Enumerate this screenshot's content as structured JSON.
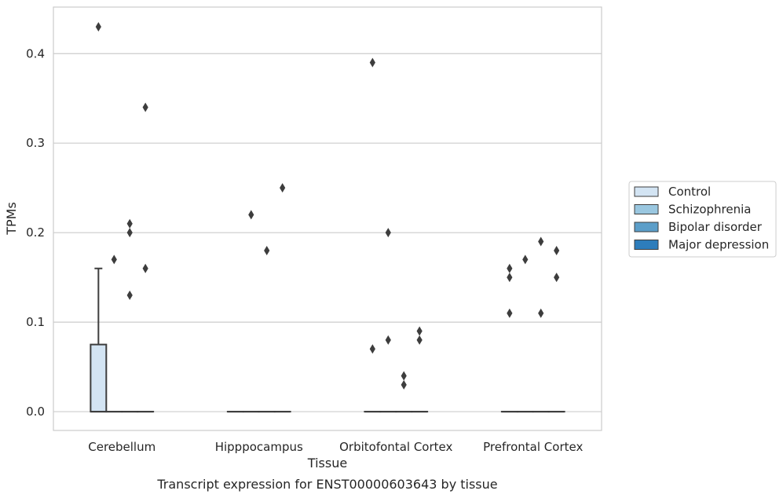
{
  "chart_data": {
    "type": "box",
    "xlabel": "Tissue",
    "ylabel": "TPMs",
    "caption": "Transcript expression for ENST00000603643 by tissue",
    "categories": [
      "Cerebellum",
      "Hipppocampus",
      "Orbitofontal Cortex",
      "Prefrontal Cortex"
    ],
    "ylim": [
      -0.021,
      0.452
    ],
    "yticks": [
      0.0,
      0.1,
      0.2,
      0.3,
      0.4
    ],
    "ytick_labels": [
      "0.0",
      "0.1",
      "0.2",
      "0.3",
      "0.4"
    ],
    "grid": "horizontal",
    "legend_position": "right",
    "series": [
      {
        "name": "Control",
        "color": "#d3e4f3",
        "boxes": [
          {
            "q1": 0.0,
            "median": 0.0,
            "q3": 0.075,
            "whisker_low": 0.0,
            "whisker_high": 0.16,
            "outliers": [
              0.43
            ]
          },
          {
            "q1": 0.0,
            "median": 0.0,
            "q3": 0.0,
            "whisker_low": 0.0,
            "whisker_high": 0.0,
            "outliers": []
          },
          {
            "q1": 0.0,
            "median": 0.0,
            "q3": 0.0,
            "whisker_low": 0.0,
            "whisker_high": 0.0,
            "outliers": [
              0.39,
              0.07
            ]
          },
          {
            "q1": 0.0,
            "median": 0.0,
            "q3": 0.0,
            "whisker_low": 0.0,
            "whisker_high": 0.0,
            "outliers": [
              0.16,
              0.15,
              0.11
            ]
          }
        ]
      },
      {
        "name": "Schizophrenia",
        "color": "#9ac7e0",
        "boxes": [
          {
            "q1": 0.0,
            "median": 0.0,
            "q3": 0.0,
            "whisker_low": 0.0,
            "whisker_high": 0.0,
            "outliers": [
              0.17
            ]
          },
          {
            "q1": 0.0,
            "median": 0.0,
            "q3": 0.0,
            "whisker_low": 0.0,
            "whisker_high": 0.0,
            "outliers": [
              0.22
            ]
          },
          {
            "q1": 0.0,
            "median": 0.0,
            "q3": 0.0,
            "whisker_low": 0.0,
            "whisker_high": 0.0,
            "outliers": [
              0.2,
              0.08
            ]
          },
          {
            "q1": 0.0,
            "median": 0.0,
            "q3": 0.0,
            "whisker_low": 0.0,
            "whisker_high": 0.0,
            "outliers": [
              0.17
            ]
          }
        ]
      },
      {
        "name": "Bipolar disorder",
        "color": "#5b9ec9",
        "boxes": [
          {
            "q1": 0.0,
            "median": 0.0,
            "q3": 0.0,
            "whisker_low": 0.0,
            "whisker_high": 0.0,
            "outliers": [
              0.21,
              0.2,
              0.13
            ]
          },
          {
            "q1": 0.0,
            "median": 0.0,
            "q3": 0.0,
            "whisker_low": 0.0,
            "whisker_high": 0.0,
            "outliers": [
              0.18
            ]
          },
          {
            "q1": 0.0,
            "median": 0.0,
            "q3": 0.0,
            "whisker_low": 0.0,
            "whisker_high": 0.0,
            "outliers": [
              0.04,
              0.03
            ]
          },
          {
            "q1": 0.0,
            "median": 0.0,
            "q3": 0.0,
            "whisker_low": 0.0,
            "whisker_high": 0.0,
            "outliers": [
              0.19,
              0.11
            ]
          }
        ]
      },
      {
        "name": "Major depression",
        "color": "#2d7dbb",
        "boxes": [
          {
            "q1": 0.0,
            "median": 0.0,
            "q3": 0.0,
            "whisker_low": 0.0,
            "whisker_high": 0.0,
            "outliers": [
              0.34,
              0.16
            ]
          },
          {
            "q1": 0.0,
            "median": 0.0,
            "q3": 0.0,
            "whisker_low": 0.0,
            "whisker_high": 0.0,
            "outliers": [
              0.25
            ]
          },
          {
            "q1": 0.0,
            "median": 0.0,
            "q3": 0.0,
            "whisker_low": 0.0,
            "whisker_high": 0.0,
            "outliers": [
              0.09,
              0.08
            ]
          },
          {
            "q1": 0.0,
            "median": 0.0,
            "q3": 0.0,
            "whisker_low": 0.0,
            "whisker_high": 0.0,
            "outliers": [
              0.18,
              0.15
            ]
          }
        ]
      }
    ]
  }
}
